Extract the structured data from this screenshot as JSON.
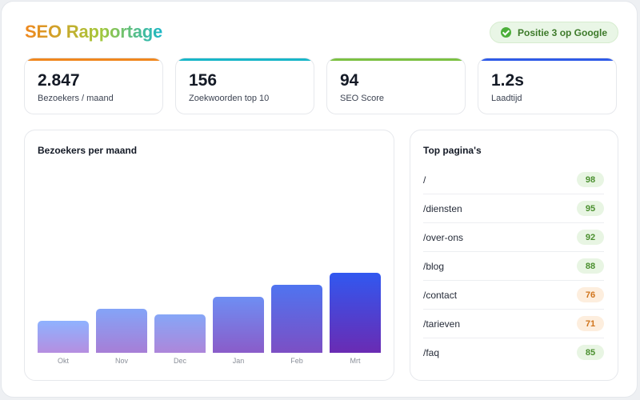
{
  "header": {
    "title": "SEO Rapportage",
    "badge_text": "Positie 3 op Google"
  },
  "kpis": [
    {
      "value": "2.847",
      "label": "Bezoekers / maand",
      "accent": "#f0871e"
    },
    {
      "value": "156",
      "label": "Zoekwoorden top 10",
      "accent": "#18b6c8"
    },
    {
      "value": "94",
      "label": "SEO Score",
      "accent": "#7cc142"
    },
    {
      "value": "1.2s",
      "label": "Laadtijd",
      "accent": "#2f5be8"
    }
  ],
  "visitors_chart": {
    "title": "Bezoekers per maand"
  },
  "chart_data": {
    "type": "bar",
    "categories": [
      "Okt",
      "Nov",
      "Dec",
      "Jan",
      "Feb",
      "Mrt"
    ],
    "values": [
      40,
      55,
      48,
      70,
      85,
      100
    ],
    "xlabel": "",
    "ylabel": "",
    "ylim": [
      0,
      100
    ],
    "grid": false,
    "legend": "none"
  },
  "top_pages": {
    "title": "Top pagina's",
    "rows": [
      {
        "path": "/",
        "score": "98",
        "status": "good"
      },
      {
        "path": "/diensten",
        "score": "95",
        "status": "good"
      },
      {
        "path": "/over-ons",
        "score": "92",
        "status": "good"
      },
      {
        "path": "/blog",
        "score": "88",
        "status": "good"
      },
      {
        "path": "/contact",
        "score": "76",
        "status": "warn"
      },
      {
        "path": "/tarieven",
        "score": "71",
        "status": "warn"
      },
      {
        "path": "/faq",
        "score": "85",
        "status": "good"
      }
    ]
  },
  "icons": {
    "badge": "check-circle-icon"
  }
}
